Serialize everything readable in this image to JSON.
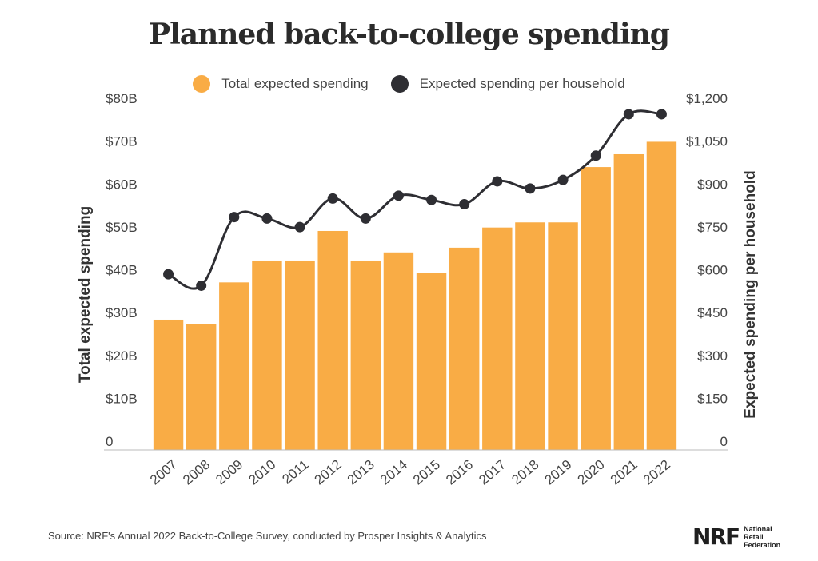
{
  "chart_data": {
    "type": "bar",
    "title": "Planned back-to-college spending",
    "categories": [
      "2007",
      "2008",
      "2009",
      "2010",
      "2011",
      "2012",
      "2013",
      "2014",
      "2015",
      "2016",
      "2017",
      "2018",
      "2019",
      "2020",
      "2021",
      "2022"
    ],
    "series": [
      {
        "name": "Total expected spending",
        "type": "bar",
        "axis": "left",
        "color": "#f9ac45",
        "values": [
          30.4,
          29.3,
          39.1,
          44.2,
          44.2,
          51.1,
          44.2,
          46.1,
          41.3,
          47.2,
          51.9,
          53.1,
          53.1,
          66,
          69,
          71.9
        ]
      },
      {
        "name": "Expected spending per household",
        "type": "line",
        "axis": "right",
        "color": "#2e2e33",
        "values": [
          615,
          575,
          815,
          810,
          780,
          880,
          810,
          890,
          875,
          860,
          940,
          915,
          945,
          1030,
          1175,
          1175
        ]
      }
    ],
    "y_left": {
      "label": "Total expected spending",
      "min": 0,
      "max": 80,
      "ticks": [
        "0",
        "$10B",
        "$20B",
        "$30B",
        "$40B",
        "$50B",
        "$60B",
        "$70B",
        "$80B"
      ]
    },
    "y_right": {
      "label": "Expected spending per household",
      "min": 0,
      "max": 1200,
      "ticks": [
        "0",
        "$150",
        "$300",
        "$450",
        "$600",
        "$750",
        "$900",
        "$1,050",
        "$1,200"
      ]
    },
    "legend_position": "top-center",
    "grid": false
  },
  "source": "Source: NRF's Annual 2022 Back-to-College Survey, conducted by Prosper Insights & Analytics",
  "logo": {
    "mark": "NRF",
    "lines": [
      "National",
      "Retail",
      "Federation"
    ]
  }
}
